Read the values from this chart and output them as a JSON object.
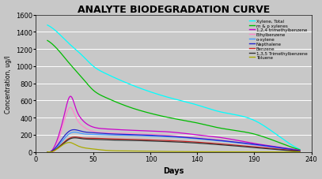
{
  "title": "ANALYTE BIODEGRADATION CURVE",
  "xlabel": "Days",
  "ylabel": "Concentration, ug/l",
  "xlim": [
    0,
    240
  ],
  "ylim": [
    0,
    1600
  ],
  "yticks": [
    0,
    200,
    400,
    600,
    800,
    1000,
    1200,
    1400,
    1600
  ],
  "xticks": [
    0,
    50,
    100,
    140,
    190,
    240
  ],
  "background_color": "#c8c8c8",
  "grid_color": "#ffffff",
  "series": [
    {
      "label": "Xylene, Total",
      "color": "#00ffff",
      "x": [
        10,
        20,
        30,
        40,
        50,
        60,
        80,
        100,
        120,
        140,
        160,
        190,
        210,
        230
      ],
      "y": [
        1480,
        1380,
        1250,
        1130,
        1000,
        920,
        800,
        700,
        620,
        550,
        470,
        370,
        200,
        30
      ]
    },
    {
      "label": "m & p xylenes",
      "color": "#00bb00",
      "x": [
        10,
        20,
        30,
        40,
        50,
        60,
        80,
        100,
        120,
        140,
        160,
        190,
        210,
        230
      ],
      "y": [
        1300,
        1180,
        1020,
        870,
        720,
        640,
        530,
        450,
        390,
        340,
        280,
        210,
        120,
        25
      ]
    },
    {
      "label": "1,2,4 trimethylbenzene",
      "color": "#cc00cc",
      "x": [
        10,
        20,
        25,
        30,
        35,
        40,
        50,
        60,
        80,
        100,
        120,
        140,
        160,
        190,
        210,
        230
      ],
      "y": [
        0,
        200,
        450,
        650,
        500,
        380,
        290,
        270,
        255,
        245,
        230,
        200,
        170,
        100,
        60,
        20
      ]
    },
    {
      "label": "Ethylbenzene",
      "color": "#ff88cc",
      "x": [
        10,
        20,
        25,
        30,
        35,
        40,
        50,
        60,
        80,
        100,
        120,
        140,
        160,
        190,
        210,
        230
      ],
      "y": [
        0,
        150,
        380,
        520,
        400,
        310,
        240,
        225,
        215,
        205,
        190,
        165,
        140,
        80,
        45,
        15
      ]
    },
    {
      "label": "o-xylene",
      "color": "#4499ff",
      "x": [
        10,
        20,
        25,
        30,
        40,
        50,
        60,
        80,
        100,
        120,
        140,
        160,
        190,
        210,
        230
      ],
      "y": [
        0,
        80,
        160,
        220,
        215,
        205,
        200,
        195,
        185,
        175,
        155,
        130,
        85,
        50,
        12
      ]
    },
    {
      "label": "Napthalene",
      "color": "#2222cc",
      "x": [
        10,
        20,
        25,
        30,
        40,
        50,
        60,
        80,
        100,
        120,
        140,
        160,
        190,
        210,
        230
      ],
      "y": [
        0,
        100,
        190,
        250,
        240,
        225,
        215,
        205,
        195,
        180,
        160,
        135,
        90,
        55,
        15
      ]
    },
    {
      "label": "Benzene",
      "color": "#cc2222",
      "x": [
        10,
        20,
        25,
        30,
        40,
        50,
        60,
        80,
        100,
        120,
        140,
        160,
        190,
        210,
        230
      ],
      "y": [
        0,
        60,
        120,
        165,
        165,
        160,
        155,
        148,
        140,
        130,
        115,
        95,
        60,
        35,
        10
      ]
    },
    {
      "label": "1,3,5 Trimethylbenzene",
      "color": "#333333",
      "x": [
        10,
        20,
        25,
        30,
        40,
        50,
        60,
        80,
        100,
        120,
        140,
        160,
        190,
        210,
        230
      ],
      "y": [
        0,
        55,
        110,
        155,
        155,
        148,
        142,
        136,
        128,
        118,
        104,
        85,
        52,
        28,
        8
      ]
    },
    {
      "label": "Toluene",
      "color": "#aaaa00",
      "x": [
        10,
        20,
        25,
        30,
        35,
        40,
        50,
        60,
        80,
        100,
        120,
        140,
        160,
        190,
        210,
        230
      ],
      "y": [
        0,
        50,
        95,
        110,
        80,
        55,
        35,
        20,
        12,
        8,
        5,
        3,
        2,
        1,
        1,
        1
      ]
    }
  ]
}
